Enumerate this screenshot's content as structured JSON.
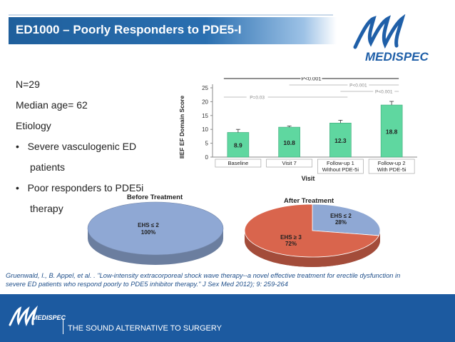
{
  "slide": {
    "title": "ED1000 – Poorly Responders to PDE5-I",
    "brand": "MEDISPEC",
    "footer_tagline": "THE SOUND ALTERNATIVE TO SURGERY"
  },
  "bullets": {
    "n": "N=29",
    "median_age": "Median age= 62",
    "etiology": "Etiology",
    "b1_line1": "Severe vasculogenic ED",
    "b1_line2": "patients",
    "b2_line1": "Poor responders to PDE5i",
    "b2_line2": "therapy",
    "bullet_char": "•"
  },
  "citation": {
    "line1": "Gruenwald, I., B. Appel, et al. . \"Low-intensity extracorporeal shock wave therapy--a novel effective treatment for erectile dysfunction in",
    "line2": "severe ED patients who respond poorly to PDE5 inhibitor therapy.\" J Sex Med 2012); 9: 259-264"
  },
  "chart_data": [
    {
      "type": "bar",
      "categories": [
        "Baseline",
        "Visit 7",
        "Follow-up 1\nWithout PDE-5i",
        "Follow-up 2\nWith PDE-5i"
      ],
      "category_lines": [
        [
          "Baseline"
        ],
        [
          "Visit 7"
        ],
        [
          "Follow-up 1",
          "Without PDE-5i"
        ],
        [
          "Follow-up 2",
          "With PDE-5i"
        ]
      ],
      "values": [
        8.9,
        10.8,
        12.3,
        18.8
      ],
      "value_labels": [
        "8.9",
        "10.8",
        "12.3",
        "18.8"
      ],
      "errors": [
        1.1,
        0.4,
        1.0,
        1.3
      ],
      "xlabel": "Visit",
      "ylabel": "IIEF EF Domain Score",
      "ylim": [
        0,
        25
      ],
      "yticks": [
        0,
        5,
        10,
        15,
        20,
        25
      ],
      "bar_color": "#5fd7a0",
      "annotations": [
        {
          "label": "P<0.001",
          "from": 0,
          "to": 3
        },
        {
          "label": "P<0.001",
          "from": 1,
          "to": 3
        },
        {
          "label": "P<0.001",
          "from": 2,
          "to": 3
        },
        {
          "label": "P=0.03",
          "from": 0,
          "to": 2
        }
      ],
      "grid": false
    },
    {
      "type": "pie",
      "title": "Before Treatment",
      "slices": [
        {
          "label": "EHS ≤ 2",
          "pct_label": "100%",
          "value": 100,
          "color": "#8fa8d4"
        }
      ]
    },
    {
      "type": "pie",
      "title": "After Treatment",
      "slices": [
        {
          "label": "EHS ≤ 2",
          "pct_label": "28%",
          "value": 28,
          "color": "#8fa8d4"
        },
        {
          "label": "EHS ≥ 3",
          "pct_label": "72%",
          "value": 72,
          "color": "#d9654d"
        }
      ]
    }
  ]
}
